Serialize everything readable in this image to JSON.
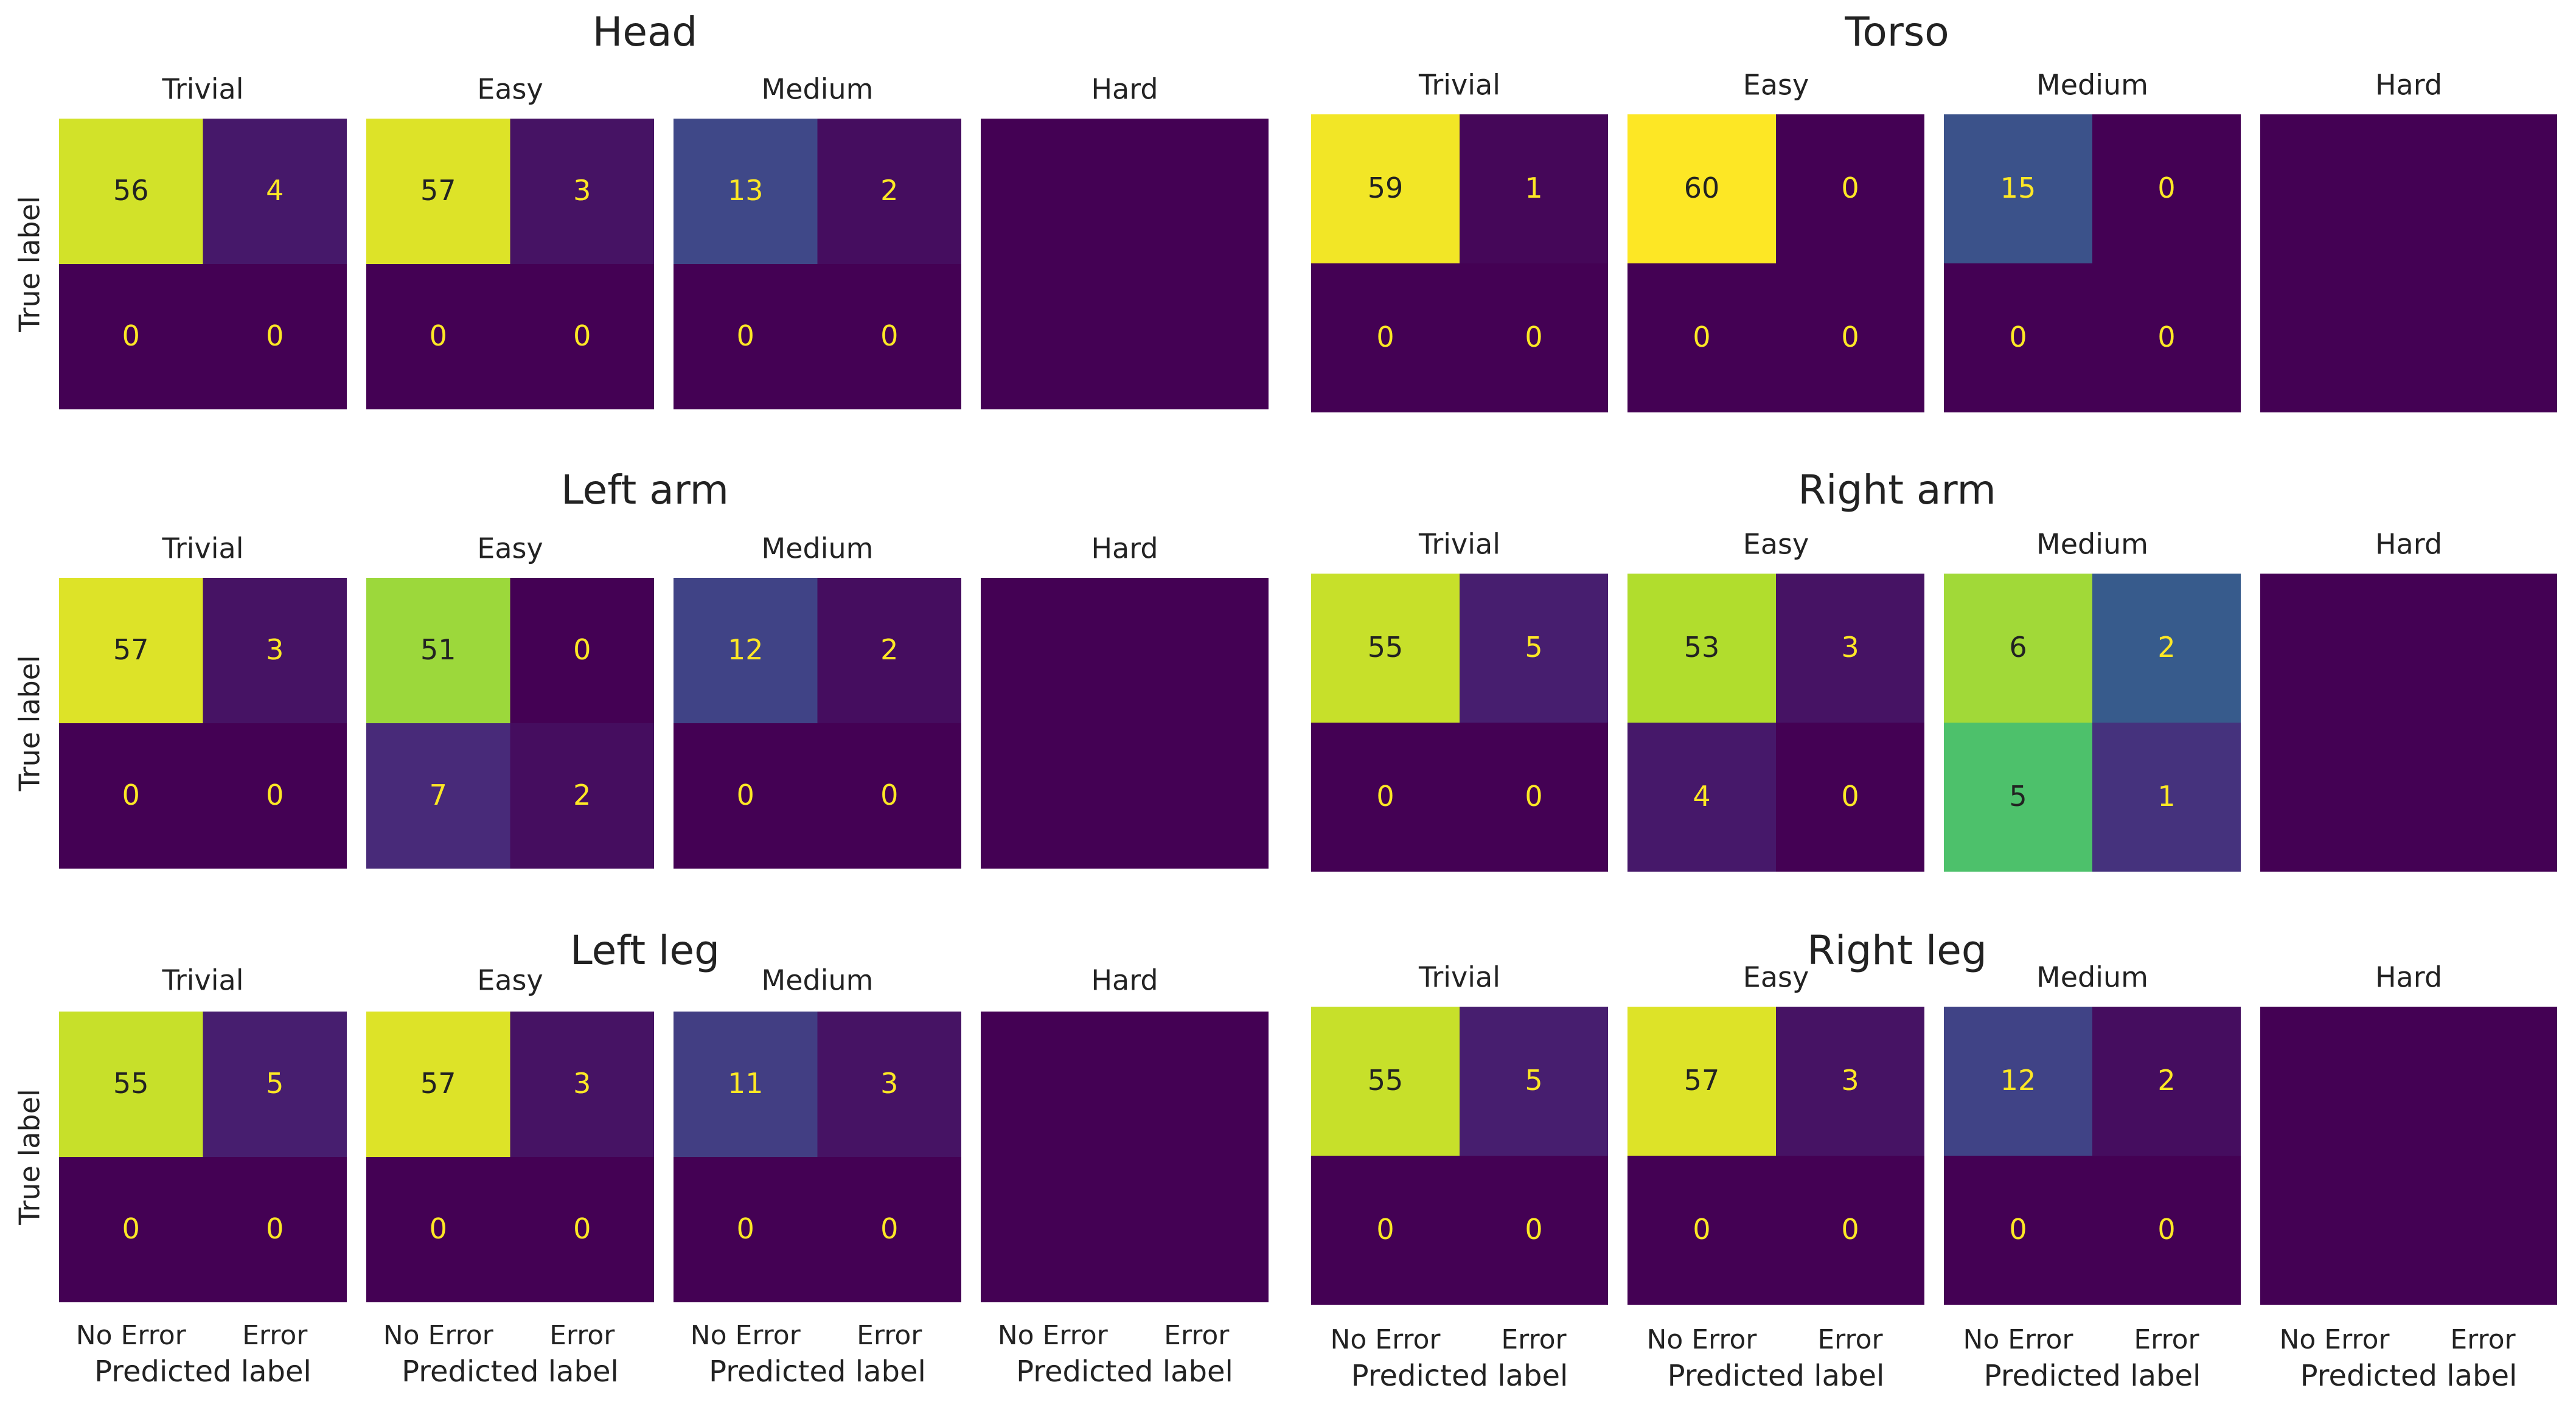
{
  "chart_data": [
    {
      "type": "heatmap",
      "title": "Head",
      "ylabel": "True label",
      "xlabel": "Predicted label",
      "x_tick_labels": [
        "No Error",
        "Error"
      ],
      "colormap": "viridis",
      "color_range": [
        0,
        60
      ],
      "panels": [
        {
          "title": "Trivial",
          "values": [
            [
              56,
              4
            ],
            [
              0,
              0
            ]
          ],
          "show_values": true
        },
        {
          "title": "Easy",
          "values": [
            [
              57,
              3
            ],
            [
              0,
              0
            ]
          ],
          "show_values": true
        },
        {
          "title": "Medium",
          "values": [
            [
              13,
              2
            ],
            [
              0,
              0
            ]
          ],
          "show_values": true
        },
        {
          "title": "Hard",
          "values": [
            [
              0,
              0
            ],
            [
              0,
              0
            ]
          ],
          "show_values": false
        }
      ]
    },
    {
      "type": "heatmap",
      "title": "Torso",
      "ylabel": "",
      "xlabel": "Predicted label",
      "x_tick_labels": [
        "No Error",
        "Error"
      ],
      "colormap": "viridis",
      "color_range": [
        0,
        60
      ],
      "panels": [
        {
          "title": "Trivial",
          "values": [
            [
              59,
              1
            ],
            [
              0,
              0
            ]
          ],
          "show_values": true
        },
        {
          "title": "Easy",
          "values": [
            [
              60,
              0
            ],
            [
              0,
              0
            ]
          ],
          "show_values": true
        },
        {
          "title": "Medium",
          "values": [
            [
              15,
              0
            ],
            [
              0,
              0
            ]
          ],
          "show_values": true
        },
        {
          "title": "Hard",
          "values": [
            [
              0,
              0
            ],
            [
              0,
              0
            ]
          ],
          "show_values": false
        }
      ]
    },
    {
      "type": "heatmap",
      "title": "Left arm",
      "ylabel": "True label",
      "xlabel": "Predicted label",
      "x_tick_labels": [
        "No Error",
        "Error"
      ],
      "colormap": "viridis",
      "color_range": [
        0,
        60
      ],
      "panels": [
        {
          "title": "Trivial",
          "values": [
            [
              57,
              3
            ],
            [
              0,
              0
            ]
          ],
          "show_values": true
        },
        {
          "title": "Easy",
          "values": [
            [
              51,
              0
            ],
            [
              7,
              2
            ]
          ],
          "show_values": true
        },
        {
          "title": "Medium",
          "values": [
            [
              12,
              2
            ],
            [
              0,
              0
            ]
          ],
          "show_values": true
        },
        {
          "title": "Hard",
          "values": [
            [
              0,
              0
            ],
            [
              0,
              0
            ]
          ],
          "show_values": false
        }
      ]
    },
    {
      "type": "heatmap",
      "title": "Right arm",
      "ylabel": "",
      "xlabel": "Predicted label",
      "x_tick_labels": [
        "No Error",
        "Error"
      ],
      "colormap": "viridis",
      "color_range": [
        0,
        60
      ],
      "panels": [
        {
          "title": "Trivial",
          "values": [
            [
              55,
              5
            ],
            [
              0,
              0
            ]
          ],
          "show_values": true
        },
        {
          "title": "Easy",
          "values": [
            [
              53,
              3
            ],
            [
              4,
              0
            ]
          ],
          "show_values": true
        },
        {
          "title": "Medium",
          "values": [
            [
              6,
              2
            ],
            [
              5,
              1
            ]
          ],
          "show_values": true,
          "color_range": [
            0,
            7
          ]
        },
        {
          "title": "Hard",
          "values": [
            [
              0,
              0
            ],
            [
              0,
              0
            ]
          ],
          "show_values": false
        }
      ]
    },
    {
      "type": "heatmap",
      "title": "Left leg",
      "ylabel": "True label",
      "xlabel": "Predicted label",
      "x_tick_labels": [
        "No Error",
        "Error"
      ],
      "colormap": "viridis",
      "color_range": [
        0,
        60
      ],
      "panels": [
        {
          "title": "Trivial",
          "values": [
            [
              55,
              5
            ],
            [
              0,
              0
            ]
          ],
          "show_values": true
        },
        {
          "title": "Easy",
          "values": [
            [
              57,
              3
            ],
            [
              0,
              0
            ]
          ],
          "show_values": true
        },
        {
          "title": "Medium",
          "values": [
            [
              11,
              3
            ],
            [
              0,
              0
            ]
          ],
          "show_values": true
        },
        {
          "title": "Hard",
          "values": [
            [
              0,
              0
            ],
            [
              0,
              0
            ]
          ],
          "show_values": false
        }
      ]
    },
    {
      "type": "heatmap",
      "title": "Right leg",
      "ylabel": "",
      "xlabel": "Predicted label",
      "x_tick_labels": [
        "No Error",
        "Error"
      ],
      "colormap": "viridis",
      "color_range": [
        0,
        60
      ],
      "panels": [
        {
          "title": "Trivial",
          "values": [
            [
              55,
              5
            ],
            [
              0,
              0
            ]
          ],
          "show_values": true
        },
        {
          "title": "Easy",
          "values": [
            [
              57,
              3
            ],
            [
              0,
              0
            ]
          ],
          "show_values": true
        },
        {
          "title": "Medium",
          "values": [
            [
              12,
              2
            ],
            [
              0,
              0
            ]
          ],
          "show_values": true
        },
        {
          "title": "Hard",
          "values": [
            [
              0,
              0
            ],
            [
              0,
              0
            ]
          ],
          "show_values": false
        }
      ]
    }
  ],
  "colors": {
    "viridis_low": "#440154",
    "viridis_high": "#fde725",
    "label_dark": "#222222",
    "label_light": "#fde725",
    "background": "#ffffff"
  }
}
